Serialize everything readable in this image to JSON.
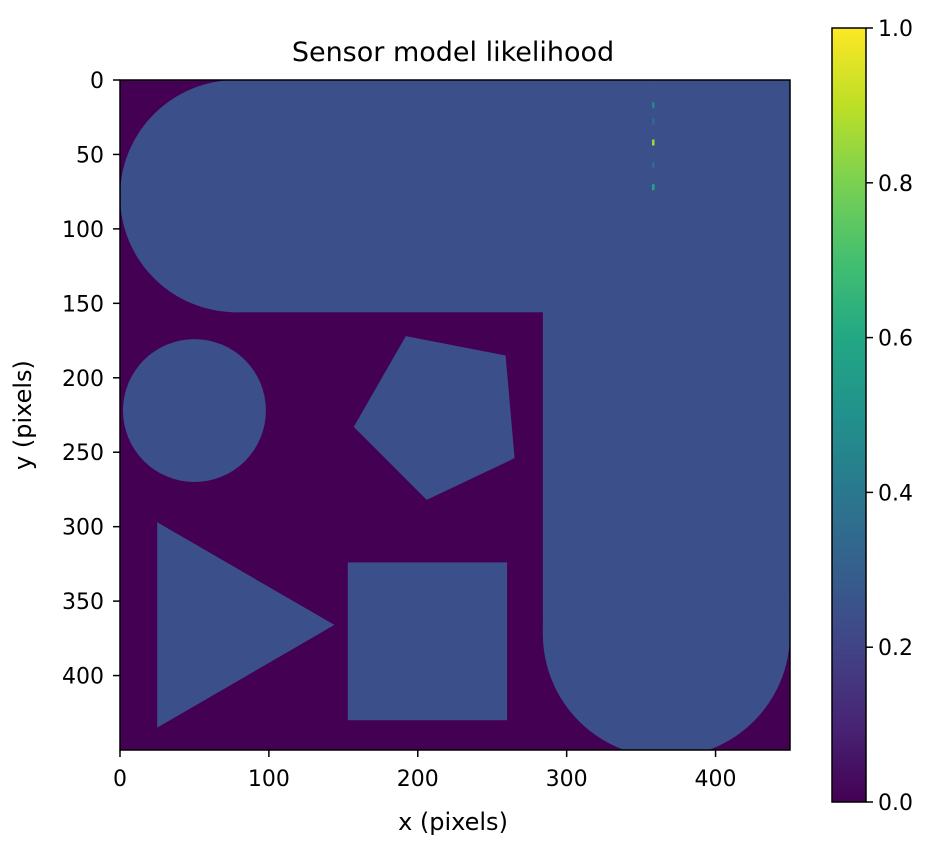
{
  "chart_data": {
    "type": "heatmap",
    "title": "Sensor model likelihood",
    "xlabel": "x (pixels)",
    "ylabel": "y (pixels)",
    "xlim": [
      0,
      450
    ],
    "ylim": [
      450,
      0
    ],
    "x_ticks": [
      0,
      100,
      200,
      300,
      400
    ],
    "y_ticks": [
      0,
      50,
      100,
      150,
      200,
      250,
      300,
      350,
      400
    ],
    "colormap": "viridis",
    "colorbar": {
      "range": [
        0.0,
        1.0
      ],
      "ticks": [
        "0.0",
        "0.2",
        "0.4",
        "0.6",
        "0.8",
        "1.0"
      ],
      "position": "right"
    },
    "grid": false,
    "background_value": 0.0,
    "shape_value": 0.167,
    "colors": {
      "background": "#440154",
      "shape": "#3b4f8a",
      "peak": "#fde725"
    },
    "regions": [
      {
        "name": "top-bar",
        "shape": "rect",
        "x": [
          75,
          450
        ],
        "y": [
          0,
          156
        ]
      },
      {
        "name": "top-left-rounded-end",
        "shape": "circle",
        "center": [
          78,
          78
        ],
        "radius": 78
      },
      {
        "name": "right-bar",
        "shape": "rect",
        "x": [
          284,
          450
        ],
        "y": [
          0,
          372
        ]
      },
      {
        "name": "bottom-right-rounded-end",
        "shape": "circle",
        "center": [
          367,
          372
        ],
        "radius": 83
      },
      {
        "name": "circle",
        "shape": "circle",
        "center": [
          50,
          222
        ],
        "radius": 48
      },
      {
        "name": "pentagon",
        "shape": "polygon",
        "points": [
          [
            192,
            172
          ],
          [
            259,
            185
          ],
          [
            265,
            254
          ],
          [
            206,
            282
          ],
          [
            157,
            233
          ]
        ]
      },
      {
        "name": "triangle",
        "shape": "polygon",
        "points": [
          [
            25,
            297
          ],
          [
            144,
            366
          ],
          [
            25,
            435
          ]
        ]
      },
      {
        "name": "square",
        "shape": "rect",
        "x": [
          153,
          260
        ],
        "y": [
          324,
          430
        ]
      }
    ],
    "peaks": [
      {
        "x": 358,
        "y": 42,
        "value": 0.85
      },
      {
        "x": 358,
        "y": 72,
        "value": 0.6
      },
      {
        "x": 358,
        "y": 17,
        "value": 0.45
      },
      {
        "x": 358,
        "y": 28,
        "value": 0.35
      },
      {
        "x": 358,
        "y": 57,
        "value": 0.35
      },
      {
        "x": 358,
        "y": 83,
        "value": 0.25
      },
      {
        "x": 358,
        "y": 5,
        "value": 0.25
      }
    ]
  }
}
